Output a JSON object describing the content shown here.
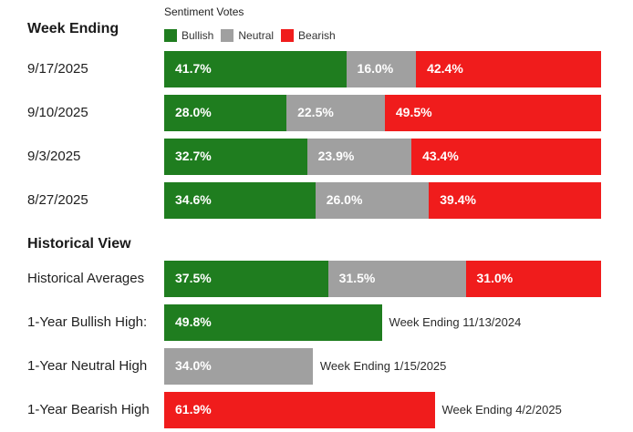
{
  "legend": {
    "title": "Sentiment Votes",
    "items": [
      {
        "label": "Bullish",
        "color": "#1f7d1f"
      },
      {
        "label": "Neutral",
        "color": "#a0a0a0"
      },
      {
        "label": "Bearish",
        "color": "#f01c1c"
      }
    ]
  },
  "sections": {
    "weekly_title": "Week Ending",
    "historical_title": "Historical View"
  },
  "chart_data": [
    {
      "type": "bar",
      "stacked": true,
      "orientation": "horizontal",
      "categories": [
        "9/17/2025",
        "9/10/2025",
        "9/3/2025",
        "8/27/2025"
      ],
      "series": [
        {
          "name": "Bullish",
          "values": [
            41.7,
            28.0,
            32.7,
            34.6
          ],
          "labels": [
            "41.7%",
            "28.0%",
            "32.7%",
            "34.6%"
          ]
        },
        {
          "name": "Neutral",
          "values": [
            16.0,
            22.5,
            23.9,
            26.0
          ],
          "labels": [
            "16.0%",
            "22.5%",
            "23.9%",
            "26.0%"
          ]
        },
        {
          "name": "Bearish",
          "values": [
            42.4,
            49.5,
            43.4,
            39.4
          ],
          "labels": [
            "42.4%",
            "49.5%",
            "43.4%",
            "39.4%"
          ]
        }
      ],
      "xlim": [
        0,
        100
      ]
    },
    {
      "type": "bar",
      "stacked": true,
      "orientation": "horizontal",
      "categories": [
        "Historical Averages"
      ],
      "series": [
        {
          "name": "Bullish",
          "values": [
            37.5
          ],
          "labels": [
            "37.5%"
          ]
        },
        {
          "name": "Neutral",
          "values": [
            31.5
          ],
          "labels": [
            "31.5%"
          ]
        },
        {
          "name": "Bearish",
          "values": [
            31.0
          ],
          "labels": [
            "31.0%"
          ]
        }
      ],
      "xlim": [
        0,
        100
      ]
    },
    {
      "type": "bar",
      "orientation": "horizontal",
      "categories": [
        "1-Year Bullish High:",
        "1-Year Neutral High",
        "1-Year Bearish High"
      ],
      "values": [
        49.8,
        34.0,
        61.9
      ],
      "value_labels": [
        "49.8%",
        "34.0%",
        "61.9%"
      ],
      "series_names": [
        "Bullish",
        "Neutral",
        "Bearish"
      ],
      "annotations": [
        "Week Ending 11/13/2024",
        "Week Ending 1/15/2025",
        "Week Ending 4/2/2025"
      ],
      "xlim": [
        0,
        100
      ]
    }
  ]
}
